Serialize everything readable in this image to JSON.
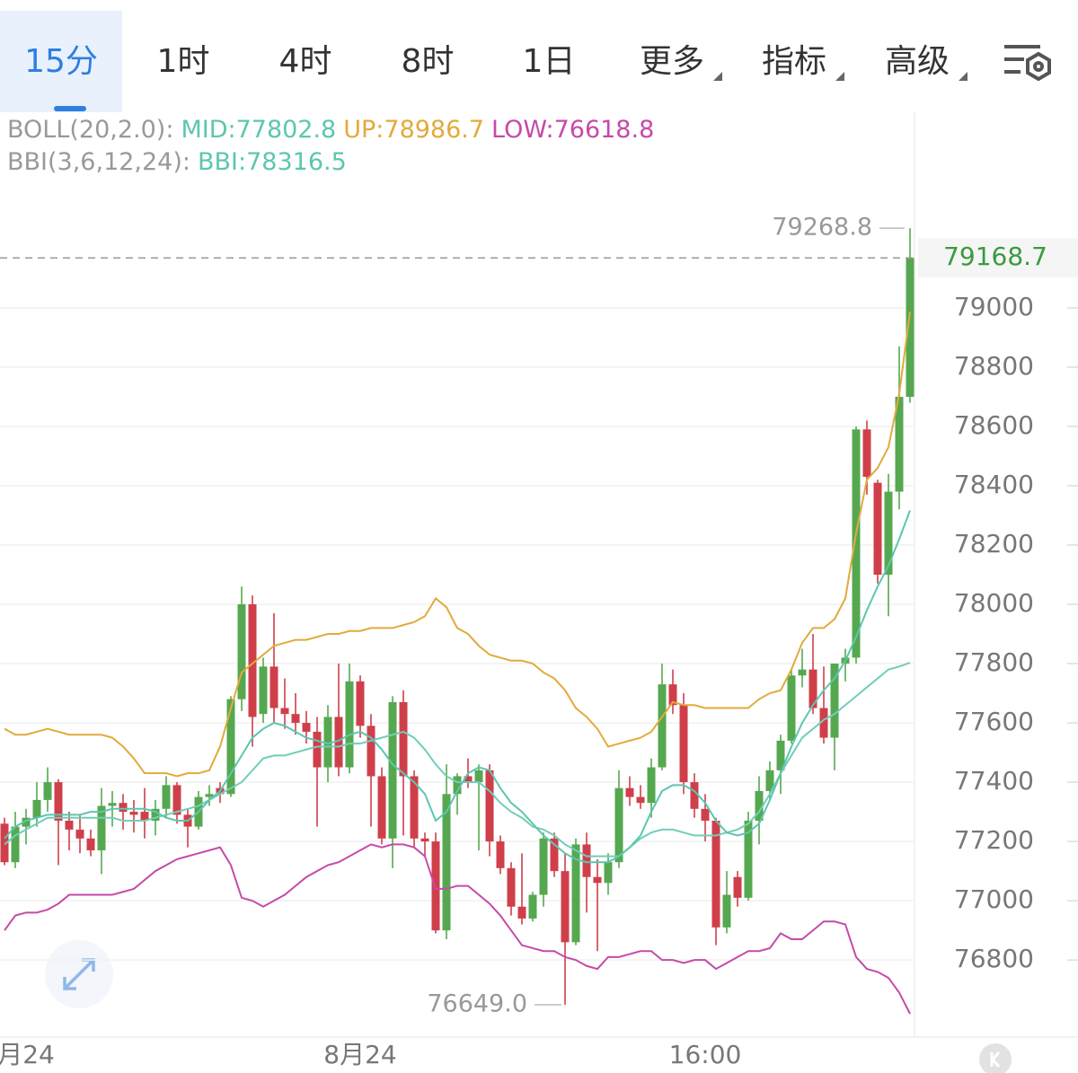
{
  "tabs": [
    "15分",
    "1时",
    "4时",
    "8时",
    "1日",
    "更多",
    "指标",
    "高级"
  ],
  "chart_data": {
    "type": "candlestick",
    "indicators": [
      {
        "label": "BOLL(20,2.0):",
        "items": [
          {
            "text": "MID:77802.8",
            "color": "#5cc6b0"
          },
          {
            "text": "UP:78986.7",
            "color": "#e2aa3c"
          },
          {
            "text": "LOW:76618.8",
            "color": "#c54aa8"
          }
        ]
      },
      {
        "label": "BBI(3,6,12,24):",
        "items": [
          {
            "text": "BBI:78316.5",
            "color": "#5cc6b0"
          }
        ]
      }
    ],
    "categories": [
      null,
      null,
      "月24",
      null,
      null,
      null,
      null,
      null,
      null,
      null,
      null,
      null,
      null,
      null,
      null,
      null,
      null,
      null,
      null,
      null,
      null,
      null,
      null,
      null,
      null,
      null,
      null,
      null,
      null,
      null,
      null,
      null,
      null,
      "8月24",
      null,
      null,
      null,
      null,
      null,
      null,
      null,
      null,
      null,
      null,
      null,
      null,
      null,
      null,
      null,
      null,
      null,
      null,
      null,
      null,
      null,
      null,
      null,
      null,
      null,
      null,
      null,
      null,
      null,
      null,
      null,
      "16:00",
      null,
      null,
      null,
      null,
      null,
      null,
      null,
      null,
      null,
      null,
      null,
      null,
      null,
      null,
      null,
      null,
      null,
      null,
      null
    ],
    "open": [
      77260,
      77130,
      77250,
      77280,
      77340,
      77400,
      77270,
      77240,
      77210,
      77170,
      77320,
      77330,
      77300,
      77300,
      77270,
      77310,
      77390,
      77290,
      77250,
      77350,
      77380,
      77360,
      77680,
      78000,
      77630,
      77790,
      77650,
      77630,
      77600,
      77570,
      77450,
      77620,
      77450,
      77740,
      77590,
      77420,
      77210,
      77670,
      77420,
      77210,
      77200,
      76900,
      77360,
      77420,
      77400,
      77440,
      77200,
      77110,
      76980,
      76940,
      77020,
      77210,
      77100,
      76860,
      77190,
      77080,
      77060,
      77130,
      77380,
      77350,
      77330,
      77450,
      77730,
      77660,
      77400,
      77310,
      77270,
      76910,
      77080,
      77010,
      77270,
      77370,
      77440,
      77540,
      77760,
      77780,
      77650,
      77550,
      77800,
      77820,
      78590,
      78410,
      78100,
      78380,
      78700
    ],
    "high": [
      77280,
      77300,
      77310,
      77400,
      77450,
      77410,
      77300,
      77290,
      77240,
      77380,
      77370,
      77360,
      77340,
      77380,
      77340,
      77420,
      77400,
      77310,
      77370,
      77390,
      77400,
      77690,
      78060,
      78030,
      77820,
      77970,
      77750,
      77700,
      77640,
      77620,
      77660,
      77800,
      77800,
      77760,
      77630,
      77450,
      77690,
      77710,
      77440,
      77230,
      77230,
      77460,
      77430,
      77480,
      77460,
      77460,
      77220,
      77130,
      77160,
      77030,
      77230,
      77230,
      77160,
      77210,
      77230,
      77140,
      77160,
      77440,
      77420,
      77390,
      77480,
      77800,
      77780,
      77700,
      77430,
      77360,
      77280,
      77100,
      77100,
      77300,
      77420,
      77470,
      77560,
      77780,
      77850,
      77900,
      77790,
      77800,
      77850,
      78600,
      78620,
      78420,
      78440,
      78870,
      79268.8
    ],
    "low": [
      77120,
      77110,
      77190,
      77250,
      77300,
      77120,
      77170,
      77160,
      77150,
      77090,
      77250,
      77240,
      77230,
      77210,
      77220,
      77280,
      77260,
      77180,
      77240,
      77320,
      77330,
      77350,
      77640,
      77520,
      77600,
      77600,
      77580,
      77560,
      77530,
      77250,
      77400,
      77420,
      77430,
      77550,
      77250,
      77190,
      77110,
      77220,
      77180,
      77150,
      76890,
      76870,
      77290,
      77380,
      77170,
      77150,
      77090,
      76950,
      76920,
      76930,
      76980,
      77080,
      76649,
      76850,
      76960,
      76830,
      77020,
      77110,
      77320,
      77310,
      77280,
      77440,
      77630,
      77360,
      77280,
      77200,
      76850,
      76890,
      76980,
      77000,
      77190,
      77340,
      77360,
      77530,
      77720,
      77630,
      77530,
      77440,
      77740,
      77800,
      78370,
      78070,
      77960,
      78320,
      78680
    ],
    "close": [
      77130,
      77250,
      77280,
      77340,
      77400,
      77270,
      77240,
      77210,
      77170,
      77320,
      77330,
      77300,
      77290,
      77270,
      77310,
      77390,
      77290,
      77250,
      77350,
      77360,
      77360,
      77680,
      78000,
      77620,
      77790,
      77650,
      77630,
      77600,
      77570,
      77450,
      77620,
      77450,
      77740,
      77590,
      77420,
      77210,
      77670,
      77420,
      77210,
      77200,
      76900,
      77360,
      77420,
      77400,
      77440,
      77200,
      77110,
      76980,
      76940,
      77020,
      77210,
      77100,
      76860,
      77190,
      77080,
      77060,
      77130,
      77380,
      77350,
      77330,
      77450,
      77730,
      77660,
      77400,
      77310,
      77270,
      76910,
      77020,
      77010,
      77270,
      77370,
      77440,
      77540,
      77760,
      77780,
      77650,
      77550,
      77800,
      77820,
      78590,
      78430,
      78100,
      78380,
      78700,
      79168.7
    ],
    "up_color": "#55a84f",
    "down_color": "#cf3f4a",
    "series": [
      {
        "name": "UP",
        "color": "#e2aa3c",
        "values": [
          77580,
          77560,
          77560,
          77570,
          77580,
          77570,
          77560,
          77560,
          77560,
          77560,
          77550,
          77520,
          77480,
          77430,
          77430,
          77430,
          77420,
          77430,
          77430,
          77440,
          77520,
          77650,
          77770,
          77800,
          77830,
          77860,
          77870,
          77880,
          77880,
          77890,
          77900,
          77900,
          77910,
          77910,
          77920,
          77920,
          77920,
          77930,
          77940,
          77960,
          78020,
          77990,
          77920,
          77900,
          77860,
          77830,
          77820,
          77810,
          77810,
          77800,
          77770,
          77750,
          77710,
          77650,
          77620,
          77580,
          77520,
          77530,
          77540,
          77550,
          77570,
          77620,
          77670,
          77660,
          77660,
          77650,
          77650,
          77650,
          77650,
          77650,
          77680,
          77700,
          77710,
          77780,
          77870,
          77920,
          77920,
          77950,
          78020,
          78240,
          78420,
          78460,
          78530,
          78710,
          78986.7
        ]
      },
      {
        "name": "MID",
        "color": "#72cdb9",
        "values": [
          77190,
          77220,
          77240,
          77260,
          77280,
          77280,
          77280,
          77280,
          77280,
          77280,
          77280,
          77270,
          77270,
          77270,
          77280,
          77290,
          77300,
          77310,
          77320,
          77340,
          77360,
          77380,
          77400,
          77440,
          77480,
          77490,
          77490,
          77500,
          77510,
          77520,
          77520,
          77520,
          77530,
          77530,
          77540,
          77550,
          77560,
          77570,
          77550,
          77510,
          77460,
          77420,
          77400,
          77400,
          77400,
          77370,
          77330,
          77300,
          77280,
          77250,
          77240,
          77220,
          77190,
          77170,
          77150,
          77150,
          77150,
          77150,
          77180,
          77210,
          77230,
          77240,
          77240,
          77230,
          77220,
          77220,
          77220,
          77230,
          77240,
          77260,
          77300,
          77360,
          77430,
          77490,
          77550,
          77580,
          77610,
          77630,
          77660,
          77690,
          77720,
          77750,
          77780,
          77790,
          77802.8
        ]
      },
      {
        "name": "LOW",
        "color": "#c54aa8",
        "values": [
          76900,
          76950,
          76960,
          76960,
          76970,
          76990,
          77020,
          77020,
          77020,
          77020,
          77020,
          77030,
          77040,
          77070,
          77100,
          77120,
          77140,
          77150,
          77160,
          77170,
          77180,
          77120,
          77010,
          77000,
          76980,
          77000,
          77020,
          77050,
          77080,
          77100,
          77120,
          77130,
          77150,
          77170,
          77190,
          77180,
          77190,
          77190,
          77180,
          77150,
          77040,
          77040,
          77050,
          77050,
          77020,
          76990,
          76950,
          76900,
          76850,
          76840,
          76830,
          76830,
          76810,
          76800,
          76780,
          76770,
          76810,
          76810,
          76820,
          76830,
          76830,
          76800,
          76800,
          76790,
          76800,
          76800,
          76770,
          76790,
          76810,
          76830,
          76830,
          76840,
          76890,
          76870,
          76870,
          76900,
          76930,
          76930,
          76920,
          76810,
          76770,
          76760,
          76740,
          76690,
          76618.8
        ]
      },
      {
        "name": "BBI",
        "color": "#5cc6b0",
        "values": [
          77210,
          77250,
          77270,
          77280,
          77290,
          77290,
          77290,
          77290,
          77300,
          77300,
          77310,
          77310,
          77310,
          77310,
          77300,
          77280,
          77270,
          77270,
          77300,
          77340,
          77370,
          77430,
          77490,
          77550,
          77580,
          77600,
          77590,
          77570,
          77550,
          77540,
          77530,
          77540,
          77560,
          77570,
          77550,
          77510,
          77460,
          77430,
          77400,
          77360,
          77270,
          77300,
          77370,
          77430,
          77450,
          77440,
          77380,
          77330,
          77300,
          77260,
          77220,
          77190,
          77160,
          77140,
          77130,
          77130,
          77130,
          77150,
          77180,
          77220,
          77300,
          77370,
          77390,
          77390,
          77370,
          77330,
          77270,
          77230,
          77220,
          77230,
          77260,
          77340,
          77430,
          77520,
          77600,
          77660,
          77710,
          77750,
          77810,
          77890,
          77980,
          78060,
          78130,
          78220,
          78316.5
        ]
      }
    ],
    "ylim": [
      76540,
      79660
    ],
    "yticks": [
      76800,
      77000,
      77200,
      77400,
      77600,
      77800,
      78000,
      78200,
      78400,
      78600,
      78800,
      79000
    ],
    "grid": true,
    "annotations": {
      "max": "79268.8",
      "min": "76649.0"
    }
  }
}
